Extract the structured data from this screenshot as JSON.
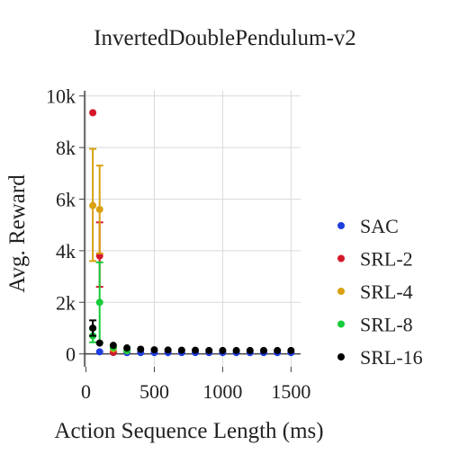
{
  "chart_data": {
    "type": "scatter",
    "title": "InvertedDoublePendulum-v2",
    "xlabel": "Action Sequence Length (ms)",
    "ylabel": "Avg. Reward",
    "xlim": [
      -10,
      1570
    ],
    "ylim": [
      -500,
      10200
    ],
    "x_ticks": [
      0,
      500,
      1000,
      1500
    ],
    "x_tick_labels": [
      "0",
      "500",
      "1000",
      "1500"
    ],
    "y_ticks": [
      0,
      2000,
      4000,
      6000,
      8000,
      10000
    ],
    "y_tick_labels": [
      "0",
      "2k",
      "4k",
      "6k",
      "8k",
      "10k"
    ],
    "grid": true,
    "legend_position": "right",
    "series": [
      {
        "name": "SAC",
        "color": "#1f3ee0",
        "points": [
          {
            "x": 100,
            "y": 80
          },
          {
            "x": 200,
            "y": 60
          },
          {
            "x": 300,
            "y": 50
          },
          {
            "x": 400,
            "y": 50
          },
          {
            "x": 500,
            "y": 50
          },
          {
            "x": 600,
            "y": 50
          },
          {
            "x": 700,
            "y": 50
          },
          {
            "x": 800,
            "y": 50
          },
          {
            "x": 900,
            "y": 50
          },
          {
            "x": 1000,
            "y": 50
          },
          {
            "x": 1100,
            "y": 50
          },
          {
            "x": 1200,
            "y": 50
          },
          {
            "x": 1300,
            "y": 50
          },
          {
            "x": 1400,
            "y": 50
          },
          {
            "x": 1500,
            "y": 50
          }
        ]
      },
      {
        "name": "SRL-2",
        "color": "#d4182a",
        "points": [
          {
            "x": 50,
            "y": 9350
          },
          {
            "x": 100,
            "y": 3800,
            "lo": 2600,
            "hi": 5100
          },
          {
            "x": 200,
            "y": 60
          }
        ]
      },
      {
        "name": "SRL-4",
        "color": "#d9a010",
        "points": [
          {
            "x": 50,
            "y": 5750,
            "lo": 3600,
            "hi": 7950
          },
          {
            "x": 100,
            "y": 5600,
            "lo": 3900,
            "hi": 7300
          },
          {
            "x": 200,
            "y": 200
          },
          {
            "x": 300,
            "y": 120
          }
        ]
      },
      {
        "name": "SRL-8",
        "color": "#17cc3a",
        "points": [
          {
            "x": 50,
            "y": 700,
            "lo": 450,
            "hi": 950
          },
          {
            "x": 100,
            "y": 2000,
            "lo": 450,
            "hi": 3550
          },
          {
            "x": 200,
            "y": 250
          },
          {
            "x": 300,
            "y": 130
          }
        ]
      },
      {
        "name": "SRL-16",
        "color": "#000000",
        "points": [
          {
            "x": 50,
            "y": 1000,
            "lo": 700,
            "hi": 1300
          },
          {
            "x": 100,
            "y": 420
          },
          {
            "x": 200,
            "y": 330
          },
          {
            "x": 300,
            "y": 230
          },
          {
            "x": 400,
            "y": 180
          },
          {
            "x": 500,
            "y": 160
          },
          {
            "x": 600,
            "y": 150
          },
          {
            "x": 700,
            "y": 140
          },
          {
            "x": 800,
            "y": 140
          },
          {
            "x": 900,
            "y": 130
          },
          {
            "x": 1000,
            "y": 130
          },
          {
            "x": 1100,
            "y": 130
          },
          {
            "x": 1200,
            "y": 130
          },
          {
            "x": 1300,
            "y": 130
          },
          {
            "x": 1400,
            "y": 130
          },
          {
            "x": 1500,
            "y": 130
          }
        ]
      }
    ]
  }
}
